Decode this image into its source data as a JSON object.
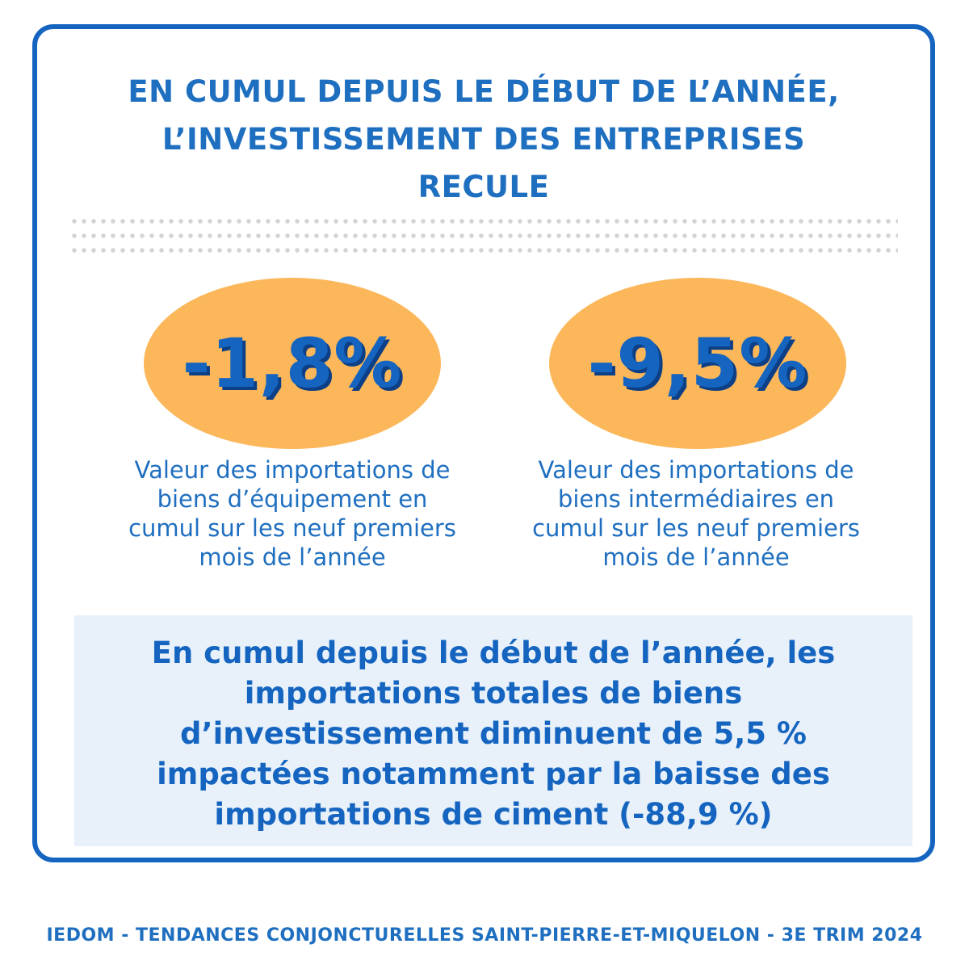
{
  "header": {
    "title_lines": [
      "EN CUMUL DEPUIS LE DÉBUT DE L’ANNÉE,",
      "L’INVESTISSEMENT DES ENTREPRISES",
      "RECULE"
    ]
  },
  "stats": [
    {
      "value": "-1,8%",
      "description_lines": [
        "Valeur des importations de",
        "biens d’équipement en",
        "cumul sur les neuf premiers",
        "mois de l’année"
      ]
    },
    {
      "value": "-9,5%",
      "description_lines": [
        "Valeur des importations de",
        "biens intermédiaires en",
        "cumul sur les neuf premiers",
        "mois de l’année"
      ]
    }
  ],
  "summary": {
    "lines": [
      "En cumul depuis le début de l’année, les",
      "importations totales de biens",
      "d’investissement diminuent de 5,5 %",
      "impactées notamment par la baisse des",
      "importations de ciment (-88,9 %)"
    ]
  },
  "footer": {
    "text": "IEDOM - TENDANCES CONJONCTURELLES SAINT-PIERRE-ET-MIQUELON - 3E TRIM 2024"
  },
  "colors": {
    "primary_blue": "#1565c0",
    "oval_orange": "#fbb75a",
    "summary_bg": "#e8f1fa"
  }
}
